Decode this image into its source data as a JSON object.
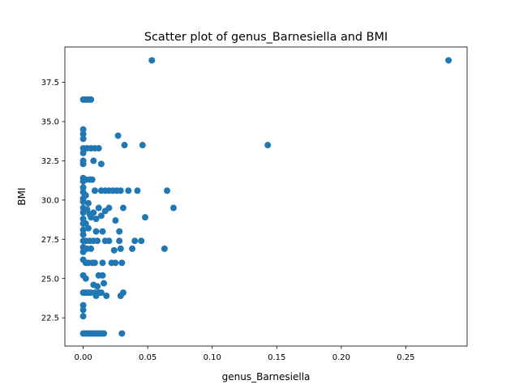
{
  "chart_data": {
    "type": "scatter",
    "title": "Scatter plot of genus_Barnesiella and BMI",
    "xlabel": "genus_Barnesiella",
    "ylabel": "BMI",
    "xlim": [
      -0.0142,
      0.2975
    ],
    "ylim": [
      20.7,
      39.75
    ],
    "xticks": [
      0.0,
      0.05,
      0.1,
      0.15,
      0.2,
      0.25
    ],
    "xtick_labels": [
      "0.00",
      "0.05",
      "0.10",
      "0.15",
      "0.20",
      "0.25"
    ],
    "yticks": [
      22.5,
      25.0,
      27.5,
      30.0,
      32.5,
      35.0,
      37.5
    ],
    "ytick_labels": [
      "22.5",
      "25.0",
      "27.5",
      "30.0",
      "32.5",
      "35.0",
      "37.5"
    ],
    "grid": false,
    "legend": "none",
    "marker_color": "#1f77b4",
    "points": [
      [
        0.0532,
        38.9
      ],
      [
        0.2831,
        38.9
      ],
      [
        0.143,
        33.5
      ],
      [
        0.0,
        36.4
      ],
      [
        0.002,
        36.4
      ],
      [
        0.004,
        36.4
      ],
      [
        0.006,
        36.4
      ],
      [
        0.0,
        34.5
      ],
      [
        0.0,
        34.2
      ],
      [
        0.0,
        33.9
      ],
      [
        0.0,
        33.3
      ],
      [
        0.0,
        33.0
      ],
      [
        0.0,
        32.5
      ],
      [
        0.0,
        32.3
      ],
      [
        0.003,
        33.3
      ],
      [
        0.006,
        33.3
      ],
      [
        0.009,
        33.3
      ],
      [
        0.012,
        33.3
      ],
      [
        0.014,
        32.3
      ],
      [
        0.008,
        32.5
      ],
      [
        0.027,
        34.1
      ],
      [
        0.032,
        33.5
      ],
      [
        0.046,
        33.5
      ],
      [
        0.0,
        31.4
      ],
      [
        0.0,
        31.2
      ],
      [
        0.002,
        31.3
      ],
      [
        0.005,
        31.3
      ],
      [
        0.007,
        31.3
      ],
      [
        0.0,
        30.8
      ],
      [
        0.0,
        30.5
      ],
      [
        0.0,
        30.1
      ],
      [
        0.0,
        29.9
      ],
      [
        0.0,
        29.5
      ],
      [
        0.0,
        29.2
      ],
      [
        0.0,
        28.8
      ],
      [
        0.0,
        28.5
      ],
      [
        0.0,
        28.1
      ],
      [
        0.0,
        27.8
      ],
      [
        0.0,
        27.4
      ],
      [
        0.0,
        27.0
      ],
      [
        0.0,
        26.7
      ],
      [
        0.0,
        26.2
      ],
      [
        0.002,
        30.3
      ],
      [
        0.004,
        29.8
      ],
      [
        0.003,
        29.4
      ],
      [
        0.005,
        29.1
      ],
      [
        0.006,
        28.9
      ],
      [
        0.008,
        29.2
      ],
      [
        0.01,
        28.8
      ],
      [
        0.002,
        28.5
      ],
      [
        0.004,
        28.2
      ],
      [
        0.009,
        30.6
      ],
      [
        0.014,
        30.6
      ],
      [
        0.017,
        30.6
      ],
      [
        0.02,
        30.6
      ],
      [
        0.023,
        30.6
      ],
      [
        0.026,
        30.6
      ],
      [
        0.029,
        30.6
      ],
      [
        0.035,
        30.6
      ],
      [
        0.042,
        30.6
      ],
      [
        0.065,
        30.6
      ],
      [
        0.012,
        29.5
      ],
      [
        0.017,
        29.3
      ],
      [
        0.02,
        29.5
      ],
      [
        0.031,
        29.5
      ],
      [
        0.07,
        29.5
      ],
      [
        0.014,
        29.0
      ],
      [
        0.025,
        28.7
      ],
      [
        0.048,
        28.9
      ],
      [
        0.002,
        27.4
      ],
      [
        0.005,
        27.4
      ],
      [
        0.008,
        27.4
      ],
      [
        0.011,
        27.4
      ],
      [
        0.017,
        27.4
      ],
      [
        0.02,
        27.4
      ],
      [
        0.028,
        27.4
      ],
      [
        0.04,
        27.4
      ],
      [
        0.045,
        27.4
      ],
      [
        0.01,
        28.0
      ],
      [
        0.015,
        28.0
      ],
      [
        0.028,
        28.0
      ],
      [
        0.003,
        26.9
      ],
      [
        0.006,
        26.9
      ],
      [
        0.024,
        26.8
      ],
      [
        0.029,
        26.9
      ],
      [
        0.038,
        26.9
      ],
      [
        0.063,
        26.9
      ],
      [
        0.002,
        26.0
      ],
      [
        0.004,
        26.0
      ],
      [
        0.007,
        26.0
      ],
      [
        0.009,
        26.0
      ],
      [
        0.015,
        26.0
      ],
      [
        0.022,
        26.0
      ],
      [
        0.025,
        26.0
      ],
      [
        0.03,
        26.0
      ],
      [
        0.0,
        25.2
      ],
      [
        0.002,
        25.0
      ],
      [
        0.012,
        25.2
      ],
      [
        0.015,
        25.2
      ],
      [
        0.008,
        24.6
      ],
      [
        0.011,
        24.5
      ],
      [
        0.016,
        24.7
      ],
      [
        0.0,
        24.1
      ],
      [
        0.002,
        24.1
      ],
      [
        0.004,
        24.1
      ],
      [
        0.006,
        24.1
      ],
      [
        0.009,
        24.1
      ],
      [
        0.012,
        24.1
      ],
      [
        0.014,
        24.1
      ],
      [
        0.031,
        24.1
      ],
      [
        0.01,
        23.9
      ],
      [
        0.018,
        23.9
      ],
      [
        0.029,
        23.9
      ],
      [
        0.0,
        23.3
      ],
      [
        0.0,
        23.0
      ],
      [
        0.0,
        22.6
      ],
      [
        0.0,
        21.5
      ],
      [
        0.002,
        21.5
      ],
      [
        0.004,
        21.5
      ],
      [
        0.006,
        21.5
      ],
      [
        0.008,
        21.5
      ],
      [
        0.01,
        21.5
      ],
      [
        0.012,
        21.5
      ],
      [
        0.014,
        21.5
      ],
      [
        0.016,
        21.5
      ],
      [
        0.03,
        21.5
      ]
    ]
  }
}
